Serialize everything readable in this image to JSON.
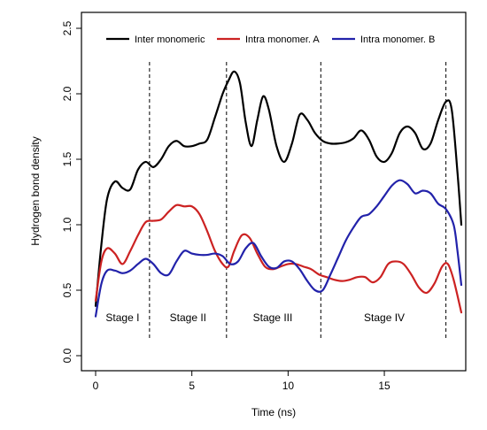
{
  "chart_data": {
    "type": "line",
    "xlabel": "Time (ns)",
    "ylabel": "Hydrogen bond density",
    "xlim": [
      0,
      19
    ],
    "ylim": [
      0,
      2.5
    ],
    "x_ticks": [
      "0",
      "5",
      "10",
      "15"
    ],
    "y_ticks": [
      "0.0",
      "0.5",
      "1.0",
      "1.5",
      "2.0",
      "2.5"
    ],
    "legend_position": "top",
    "stage_boundaries": [
      2.8,
      6.8,
      11.7,
      18.2
    ],
    "stages": [
      {
        "label": "Stage I",
        "x": 1.4,
        "y": 0.29
      },
      {
        "label": "Stage II",
        "x": 4.8,
        "y": 0.29
      },
      {
        "label": "Stage III",
        "x": 9.2,
        "y": 0.29
      },
      {
        "label": "Stage IV",
        "x": 15.0,
        "y": 0.29
      }
    ],
    "series": [
      {
        "name": "Inter monomeric",
        "color": "#000000",
        "points": [
          [
            0,
            0.38
          ],
          [
            0.3,
            0.85
          ],
          [
            0.6,
            1.2
          ],
          [
            1.0,
            1.33
          ],
          [
            1.4,
            1.28
          ],
          [
            1.8,
            1.27
          ],
          [
            2.2,
            1.42
          ],
          [
            2.6,
            1.48
          ],
          [
            3.0,
            1.44
          ],
          [
            3.4,
            1.5
          ],
          [
            3.8,
            1.6
          ],
          [
            4.2,
            1.64
          ],
          [
            4.6,
            1.6
          ],
          [
            5.0,
            1.6
          ],
          [
            5.4,
            1.62
          ],
          [
            5.8,
            1.65
          ],
          [
            6.2,
            1.82
          ],
          [
            6.6,
            2.0
          ],
          [
            6.9,
            2.1
          ],
          [
            7.2,
            2.17
          ],
          [
            7.5,
            2.08
          ],
          [
            7.8,
            1.78
          ],
          [
            8.1,
            1.6
          ],
          [
            8.4,
            1.8
          ],
          [
            8.7,
            1.98
          ],
          [
            9.0,
            1.88
          ],
          [
            9.4,
            1.6
          ],
          [
            9.8,
            1.48
          ],
          [
            10.2,
            1.62
          ],
          [
            10.6,
            1.84
          ],
          [
            11.0,
            1.8
          ],
          [
            11.4,
            1.7
          ],
          [
            11.8,
            1.64
          ],
          [
            12.2,
            1.62
          ],
          [
            12.6,
            1.62
          ],
          [
            13.0,
            1.63
          ],
          [
            13.4,
            1.66
          ],
          [
            13.8,
            1.72
          ],
          [
            14.2,
            1.65
          ],
          [
            14.6,
            1.52
          ],
          [
            15.0,
            1.48
          ],
          [
            15.4,
            1.55
          ],
          [
            15.8,
            1.7
          ],
          [
            16.2,
            1.75
          ],
          [
            16.6,
            1.7
          ],
          [
            17.0,
            1.58
          ],
          [
            17.4,
            1.62
          ],
          [
            17.8,
            1.8
          ],
          [
            18.2,
            1.94
          ],
          [
            18.5,
            1.88
          ],
          [
            18.8,
            1.4
          ],
          [
            19.0,
            1.0
          ]
        ]
      },
      {
        "name": "Intra monomer. A",
        "color": "#cc2222",
        "points": [
          [
            0,
            0.42
          ],
          [
            0.3,
            0.72
          ],
          [
            0.6,
            0.82
          ],
          [
            1.0,
            0.78
          ],
          [
            1.4,
            0.7
          ],
          [
            1.8,
            0.8
          ],
          [
            2.2,
            0.92
          ],
          [
            2.6,
            1.02
          ],
          [
            3.0,
            1.03
          ],
          [
            3.4,
            1.04
          ],
          [
            3.8,
            1.1
          ],
          [
            4.2,
            1.15
          ],
          [
            4.6,
            1.14
          ],
          [
            5.0,
            1.14
          ],
          [
            5.4,
            1.08
          ],
          [
            5.8,
            0.95
          ],
          [
            6.2,
            0.8
          ],
          [
            6.6,
            0.7
          ],
          [
            6.9,
            0.68
          ],
          [
            7.2,
            0.8
          ],
          [
            7.6,
            0.92
          ],
          [
            8.0,
            0.9
          ],
          [
            8.4,
            0.78
          ],
          [
            8.8,
            0.68
          ],
          [
            9.2,
            0.66
          ],
          [
            9.6,
            0.68
          ],
          [
            10.0,
            0.7
          ],
          [
            10.4,
            0.7
          ],
          [
            10.8,
            0.68
          ],
          [
            11.2,
            0.66
          ],
          [
            11.6,
            0.62
          ],
          [
            12.0,
            0.6
          ],
          [
            12.4,
            0.58
          ],
          [
            12.8,
            0.57
          ],
          [
            13.2,
            0.58
          ],
          [
            13.6,
            0.6
          ],
          [
            14.0,
            0.6
          ],
          [
            14.4,
            0.56
          ],
          [
            14.8,
            0.6
          ],
          [
            15.2,
            0.7
          ],
          [
            15.6,
            0.72
          ],
          [
            16.0,
            0.7
          ],
          [
            16.4,
            0.62
          ],
          [
            16.8,
            0.52
          ],
          [
            17.2,
            0.48
          ],
          [
            17.6,
            0.55
          ],
          [
            18.0,
            0.68
          ],
          [
            18.3,
            0.7
          ],
          [
            18.6,
            0.58
          ],
          [
            19.0,
            0.33
          ]
        ]
      },
      {
        "name": "Intra monomer. B",
        "color": "#2222aa",
        "points": [
          [
            0,
            0.3
          ],
          [
            0.3,
            0.55
          ],
          [
            0.6,
            0.65
          ],
          [
            1.0,
            0.65
          ],
          [
            1.4,
            0.63
          ],
          [
            1.8,
            0.65
          ],
          [
            2.2,
            0.7
          ],
          [
            2.6,
            0.74
          ],
          [
            3.0,
            0.7
          ],
          [
            3.4,
            0.63
          ],
          [
            3.8,
            0.62
          ],
          [
            4.2,
            0.72
          ],
          [
            4.6,
            0.8
          ],
          [
            5.0,
            0.78
          ],
          [
            5.4,
            0.77
          ],
          [
            5.8,
            0.77
          ],
          [
            6.2,
            0.78
          ],
          [
            6.6,
            0.76
          ],
          [
            7.0,
            0.7
          ],
          [
            7.4,
            0.72
          ],
          [
            7.8,
            0.82
          ],
          [
            8.2,
            0.86
          ],
          [
            8.6,
            0.76
          ],
          [
            9.0,
            0.68
          ],
          [
            9.4,
            0.67
          ],
          [
            9.8,
            0.72
          ],
          [
            10.2,
            0.72
          ],
          [
            10.6,
            0.66
          ],
          [
            11.0,
            0.57
          ],
          [
            11.4,
            0.5
          ],
          [
            11.8,
            0.5
          ],
          [
            12.2,
            0.62
          ],
          [
            12.6,
            0.75
          ],
          [
            13.0,
            0.88
          ],
          [
            13.4,
            0.98
          ],
          [
            13.8,
            1.06
          ],
          [
            14.2,
            1.08
          ],
          [
            14.6,
            1.14
          ],
          [
            15.0,
            1.22
          ],
          [
            15.4,
            1.3
          ],
          [
            15.8,
            1.34
          ],
          [
            16.2,
            1.31
          ],
          [
            16.6,
            1.24
          ],
          [
            17.0,
            1.26
          ],
          [
            17.4,
            1.24
          ],
          [
            17.8,
            1.16
          ],
          [
            18.2,
            1.12
          ],
          [
            18.6,
            1.0
          ],
          [
            18.8,
            0.8
          ],
          [
            19.0,
            0.54
          ]
        ]
      }
    ]
  }
}
